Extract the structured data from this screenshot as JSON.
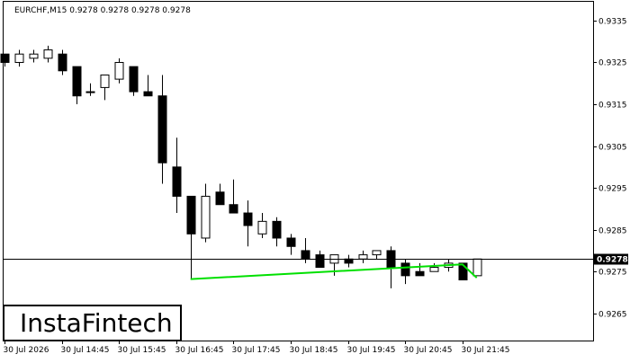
{
  "symbol_header": "EURCHF,M15  0.9278 0.9278 0.9278 0.9278",
  "logo_text": "InstaFintech",
  "current_price_label": "0.9278",
  "chart_data": {
    "type": "candlestick",
    "title": "EURCHF,M15",
    "ohlc_header": {
      "open": 0.9278,
      "high": 0.9278,
      "low": 0.9278,
      "close": 0.9278
    },
    "y_ticks": [
      "0.9335",
      "0.9325",
      "0.9315",
      "0.9305",
      "0.9295",
      "0.9285",
      "0.9275",
      "0.9265"
    ],
    "y_tick_values": [
      0.9335,
      0.9325,
      0.9315,
      0.9305,
      0.9295,
      0.9285,
      0.9275,
      0.9265
    ],
    "ylim": [
      0.92585,
      0.93395
    ],
    "x_ticks": [
      "30 Jul 2026",
      "30 Jul 14:45",
      "30 Jul 15:45",
      "30 Jul 16:45",
      "30 Jul 17:45",
      "30 Jul 18:45",
      "30 Jul 19:45",
      "30 Jul 20:45",
      "30 Jul 21:45"
    ],
    "x_tick_bar_index": [
      0,
      4,
      8,
      12,
      16,
      20,
      24,
      28,
      32
    ],
    "current_price": 0.9278,
    "candles": [
      {
        "o": 0.9327,
        "h": 0.9327,
        "l": 0.9324,
        "c": 0.9325
      },
      {
        "o": 0.9325,
        "h": 0.9328,
        "l": 0.9324,
        "c": 0.9327
      },
      {
        "o": 0.9326,
        "h": 0.9328,
        "l": 0.9325,
        "c": 0.9327
      },
      {
        "o": 0.9326,
        "h": 0.9329,
        "l": 0.9325,
        "c": 0.9328
      },
      {
        "o": 0.9327,
        "h": 0.9328,
        "l": 0.9322,
        "c": 0.9323
      },
      {
        "o": 0.9324,
        "h": 0.9324,
        "l": 0.9315,
        "c": 0.9317
      },
      {
        "o": 0.9318,
        "h": 0.932,
        "l": 0.9317,
        "c": 0.9318
      },
      {
        "o": 0.9319,
        "h": 0.9322,
        "l": 0.9316,
        "c": 0.9322
      },
      {
        "o": 0.9321,
        "h": 0.9326,
        "l": 0.932,
        "c": 0.9325
      },
      {
        "o": 0.9324,
        "h": 0.9324,
        "l": 0.9317,
        "c": 0.9318
      },
      {
        "o": 0.9318,
        "h": 0.9322,
        "l": 0.9317,
        "c": 0.9317
      },
      {
        "o": 0.9317,
        "h": 0.9322,
        "l": 0.9296,
        "c": 0.9301
      },
      {
        "o": 0.93,
        "h": 0.9307,
        "l": 0.9289,
        "c": 0.9293
      },
      {
        "o": 0.9293,
        "h": 0.9293,
        "l": 0.9273,
        "c": 0.9284
      },
      {
        "o": 0.9283,
        "h": 0.9296,
        "l": 0.9282,
        "c": 0.9293
      },
      {
        "o": 0.9294,
        "h": 0.9296,
        "l": 0.9291,
        "c": 0.9291
      },
      {
        "o": 0.9291,
        "h": 0.9297,
        "l": 0.9289,
        "c": 0.9289
      },
      {
        "o": 0.9289,
        "h": 0.9292,
        "l": 0.9281,
        "c": 0.9286
      },
      {
        "o": 0.9284,
        "h": 0.9289,
        "l": 0.9283,
        "c": 0.9287
      },
      {
        "o": 0.9287,
        "h": 0.9288,
        "l": 0.9281,
        "c": 0.9283
      },
      {
        "o": 0.9283,
        "h": 0.9284,
        "l": 0.9279,
        "c": 0.9281
      },
      {
        "o": 0.928,
        "h": 0.9283,
        "l": 0.9277,
        "c": 0.9278
      },
      {
        "o": 0.9279,
        "h": 0.928,
        "l": 0.9276,
        "c": 0.9276
      },
      {
        "o": 0.9277,
        "h": 0.9279,
        "l": 0.9274,
        "c": 0.9279
      },
      {
        "o": 0.9278,
        "h": 0.9279,
        "l": 0.9276,
        "c": 0.9277
      },
      {
        "o": 0.9278,
        "h": 0.928,
        "l": 0.9277,
        "c": 0.9279
      },
      {
        "o": 0.9279,
        "h": 0.928,
        "l": 0.9278,
        "c": 0.928
      },
      {
        "o": 0.928,
        "h": 0.9281,
        "l": 0.9271,
        "c": 0.9276
      },
      {
        "o": 0.9277,
        "h": 0.9278,
        "l": 0.9272,
        "c": 0.9274
      },
      {
        "o": 0.9275,
        "h": 0.9277,
        "l": 0.9274,
        "c": 0.9274
      },
      {
        "o": 0.9275,
        "h": 0.9277,
        "l": 0.9275,
        "c": 0.9276
      },
      {
        "o": 0.9276,
        "h": 0.9278,
        "l": 0.9275,
        "c": 0.9277
      },
      {
        "o": 0.9277,
        "h": 0.9277,
        "l": 0.9273,
        "c": 0.9273
      },
      {
        "o": 0.9274,
        "h": 0.9278,
        "l": 0.9274,
        "c": 0.9278
      }
    ],
    "pattern": {
      "type": "line",
      "color": "#00e000",
      "points": [
        {
          "bar": 13,
          "price": 0.92732
        },
        {
          "bar": 32,
          "price": 0.92767
        },
        {
          "bar": 33,
          "price": 0.92735
        }
      ]
    },
    "colors": {
      "bull_body": "#ffffff",
      "bear_body": "#000000",
      "outline": "#000000",
      "pattern": "#00e000"
    }
  }
}
